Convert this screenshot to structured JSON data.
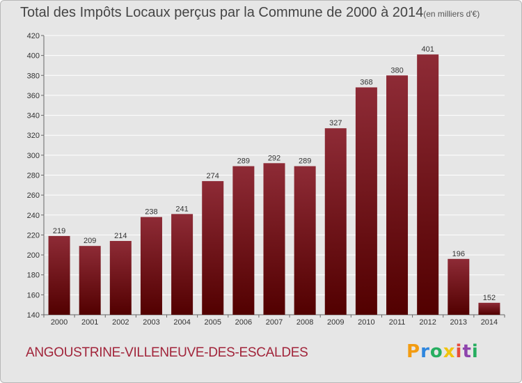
{
  "title": "Total des Impôts Locaux perçus par la Commune de 2000 à 2014",
  "unit": "(en milliers d'€)",
  "commune": "ANGOUSTRINE-VILLENEUVE-DES-ESCALDES",
  "logo": {
    "letters": [
      "P",
      "r",
      "o",
      "x",
      "i",
      "t",
      "i"
    ],
    "colors": [
      "#f39c12",
      "#2e86de",
      "#27ae60",
      "#f1c40f",
      "#e74c3c",
      "#8e44ad",
      "#27ae60"
    ]
  },
  "colors": {
    "bar_top": "#8e2b36",
    "bar_bottom": "#520000",
    "grid": "#ffffff",
    "background": "#e6e6e6"
  },
  "chart_data": {
    "type": "bar",
    "title": "Total des Impôts Locaux perçus par la Commune de 2000 à 2014",
    "xlabel": "",
    "ylabel": "",
    "categories": [
      "2000",
      "2001",
      "2002",
      "2003",
      "2004",
      "2005",
      "2006",
      "2007",
      "2008",
      "2009",
      "2010",
      "2011",
      "2012",
      "2013",
      "2014"
    ],
    "values": [
      219,
      209,
      214,
      238,
      241,
      274,
      289,
      292,
      289,
      327,
      368,
      380,
      401,
      196,
      152
    ],
    "ylim": [
      140,
      420
    ],
    "yticks": [
      140,
      160,
      180,
      200,
      220,
      240,
      260,
      280,
      300,
      320,
      340,
      360,
      380,
      400,
      420
    ],
    "grid": true
  }
}
